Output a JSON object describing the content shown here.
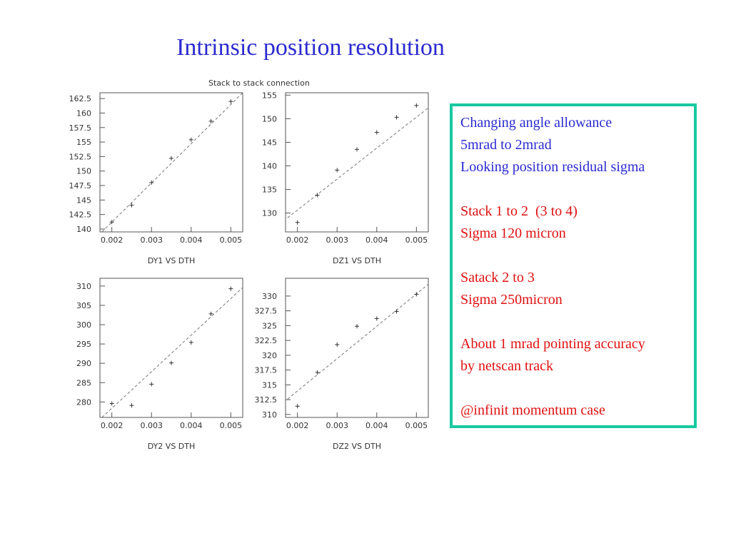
{
  "slide": {
    "title": "Intrinsic position resolution",
    "stack_title": "Stack to stack connection"
  },
  "textbox": {
    "lines": [
      {
        "text": "Changing angle allowance",
        "color": "blue"
      },
      {
        "text": "5mrad to 2mrad",
        "color": "blue"
      },
      {
        "text": "Looking position residual sigma",
        "color": "blue"
      },
      {
        "text": "",
        "color": "blue"
      },
      {
        "text": "Stack 1 to 2  (3 to 4)",
        "color": "red"
      },
      {
        "text": "Sigma 120 micron",
        "color": "red"
      },
      {
        "text": "",
        "color": "red"
      },
      {
        "text": "Satack 2 to 3",
        "color": "red"
      },
      {
        "text": "Sigma 250micron",
        "color": "red"
      },
      {
        "text": "",
        "color": "red"
      },
      {
        "text": "About 1 mrad pointing accuracy",
        "color": "red"
      },
      {
        "text": "by netscan track",
        "color": "red"
      },
      {
        "text": "",
        "color": "red"
      },
      {
        "text": "@infinit momentum case",
        "color": "red"
      }
    ]
  },
  "chart_data": [
    {
      "type": "scatter",
      "title": "DY1  VS  DTH",
      "xlim": [
        0.0017,
        0.0053
      ],
      "ylim": [
        139.5,
        163.5
      ],
      "xticks": [
        "0.002",
        "0.003",
        "0.004",
        "0.005"
      ],
      "yticks": [
        "140",
        "142.5",
        "145",
        "147.5",
        "150",
        "152.5",
        "155",
        "157.5",
        "160",
        "162.5"
      ],
      "points": [
        [
          0.002,
          141.2
        ],
        [
          0.0025,
          144.1
        ],
        [
          0.003,
          148.0
        ],
        [
          0.0035,
          152.2
        ],
        [
          0.004,
          155.4
        ],
        [
          0.0045,
          158.6
        ],
        [
          0.005,
          162.0
        ]
      ],
      "fit_line": [
        [
          0.00175,
          139.5
        ],
        [
          0.0053,
          163.5
        ]
      ]
    },
    {
      "type": "scatter",
      "title": "DZ1  VS  DTH",
      "xlim": [
        0.0017,
        0.0053
      ],
      "ylim": [
        126.0,
        155.5
      ],
      "xticks": [
        "0.002",
        "0.003",
        "0.004",
        "0.005"
      ],
      "yticks": [
        "130",
        "135",
        "140",
        "145",
        "150",
        "155"
      ],
      "points": [
        [
          0.002,
          128.0
        ],
        [
          0.0025,
          133.8
        ],
        [
          0.003,
          139.1
        ],
        [
          0.0035,
          143.5
        ],
        [
          0.004,
          147.1
        ],
        [
          0.0045,
          150.3
        ],
        [
          0.005,
          152.8
        ]
      ],
      "fit_line": [
        [
          0.00175,
          129.0
        ],
        [
          0.0053,
          152.3
        ]
      ]
    },
    {
      "type": "scatter",
      "title": "DY2  VS  DTH",
      "xlim": [
        0.0017,
        0.0053
      ],
      "ylim": [
        276.0,
        312.0
      ],
      "xticks": [
        "0.002",
        "0.003",
        "0.004",
        "0.005"
      ],
      "yticks": [
        "280",
        "285",
        "290",
        "295",
        "300",
        "305",
        "310"
      ],
      "points": [
        [
          0.002,
          279.6
        ],
        [
          0.0025,
          279.1
        ],
        [
          0.003,
          284.6
        ],
        [
          0.0035,
          290.1
        ],
        [
          0.004,
          295.4
        ],
        [
          0.0045,
          302.8
        ],
        [
          0.005,
          309.3
        ]
      ],
      "fit_line": [
        [
          0.00175,
          276.0
        ],
        [
          0.0053,
          309.6
        ]
      ]
    },
    {
      "type": "scatter",
      "title": "DZ2  VS  DTH",
      "xlim": [
        0.0017,
        0.0053
      ],
      "ylim": [
        309.5,
        333.0
      ],
      "xticks": [
        "0.002",
        "0.003",
        "0.004",
        "0.005"
      ],
      "yticks": [
        "310",
        "312.5",
        "315",
        "317.5",
        "320",
        "322.5",
        "325",
        "327.5",
        "330"
      ],
      "points": [
        [
          0.002,
          311.4
        ],
        [
          0.0025,
          317.1
        ],
        [
          0.003,
          321.8
        ],
        [
          0.0035,
          324.9
        ],
        [
          0.004,
          326.2
        ],
        [
          0.0045,
          327.4
        ],
        [
          0.005,
          330.3
        ]
      ],
      "fit_line": [
        [
          0.00175,
          312.6
        ],
        [
          0.0053,
          332.0
        ]
      ]
    }
  ]
}
